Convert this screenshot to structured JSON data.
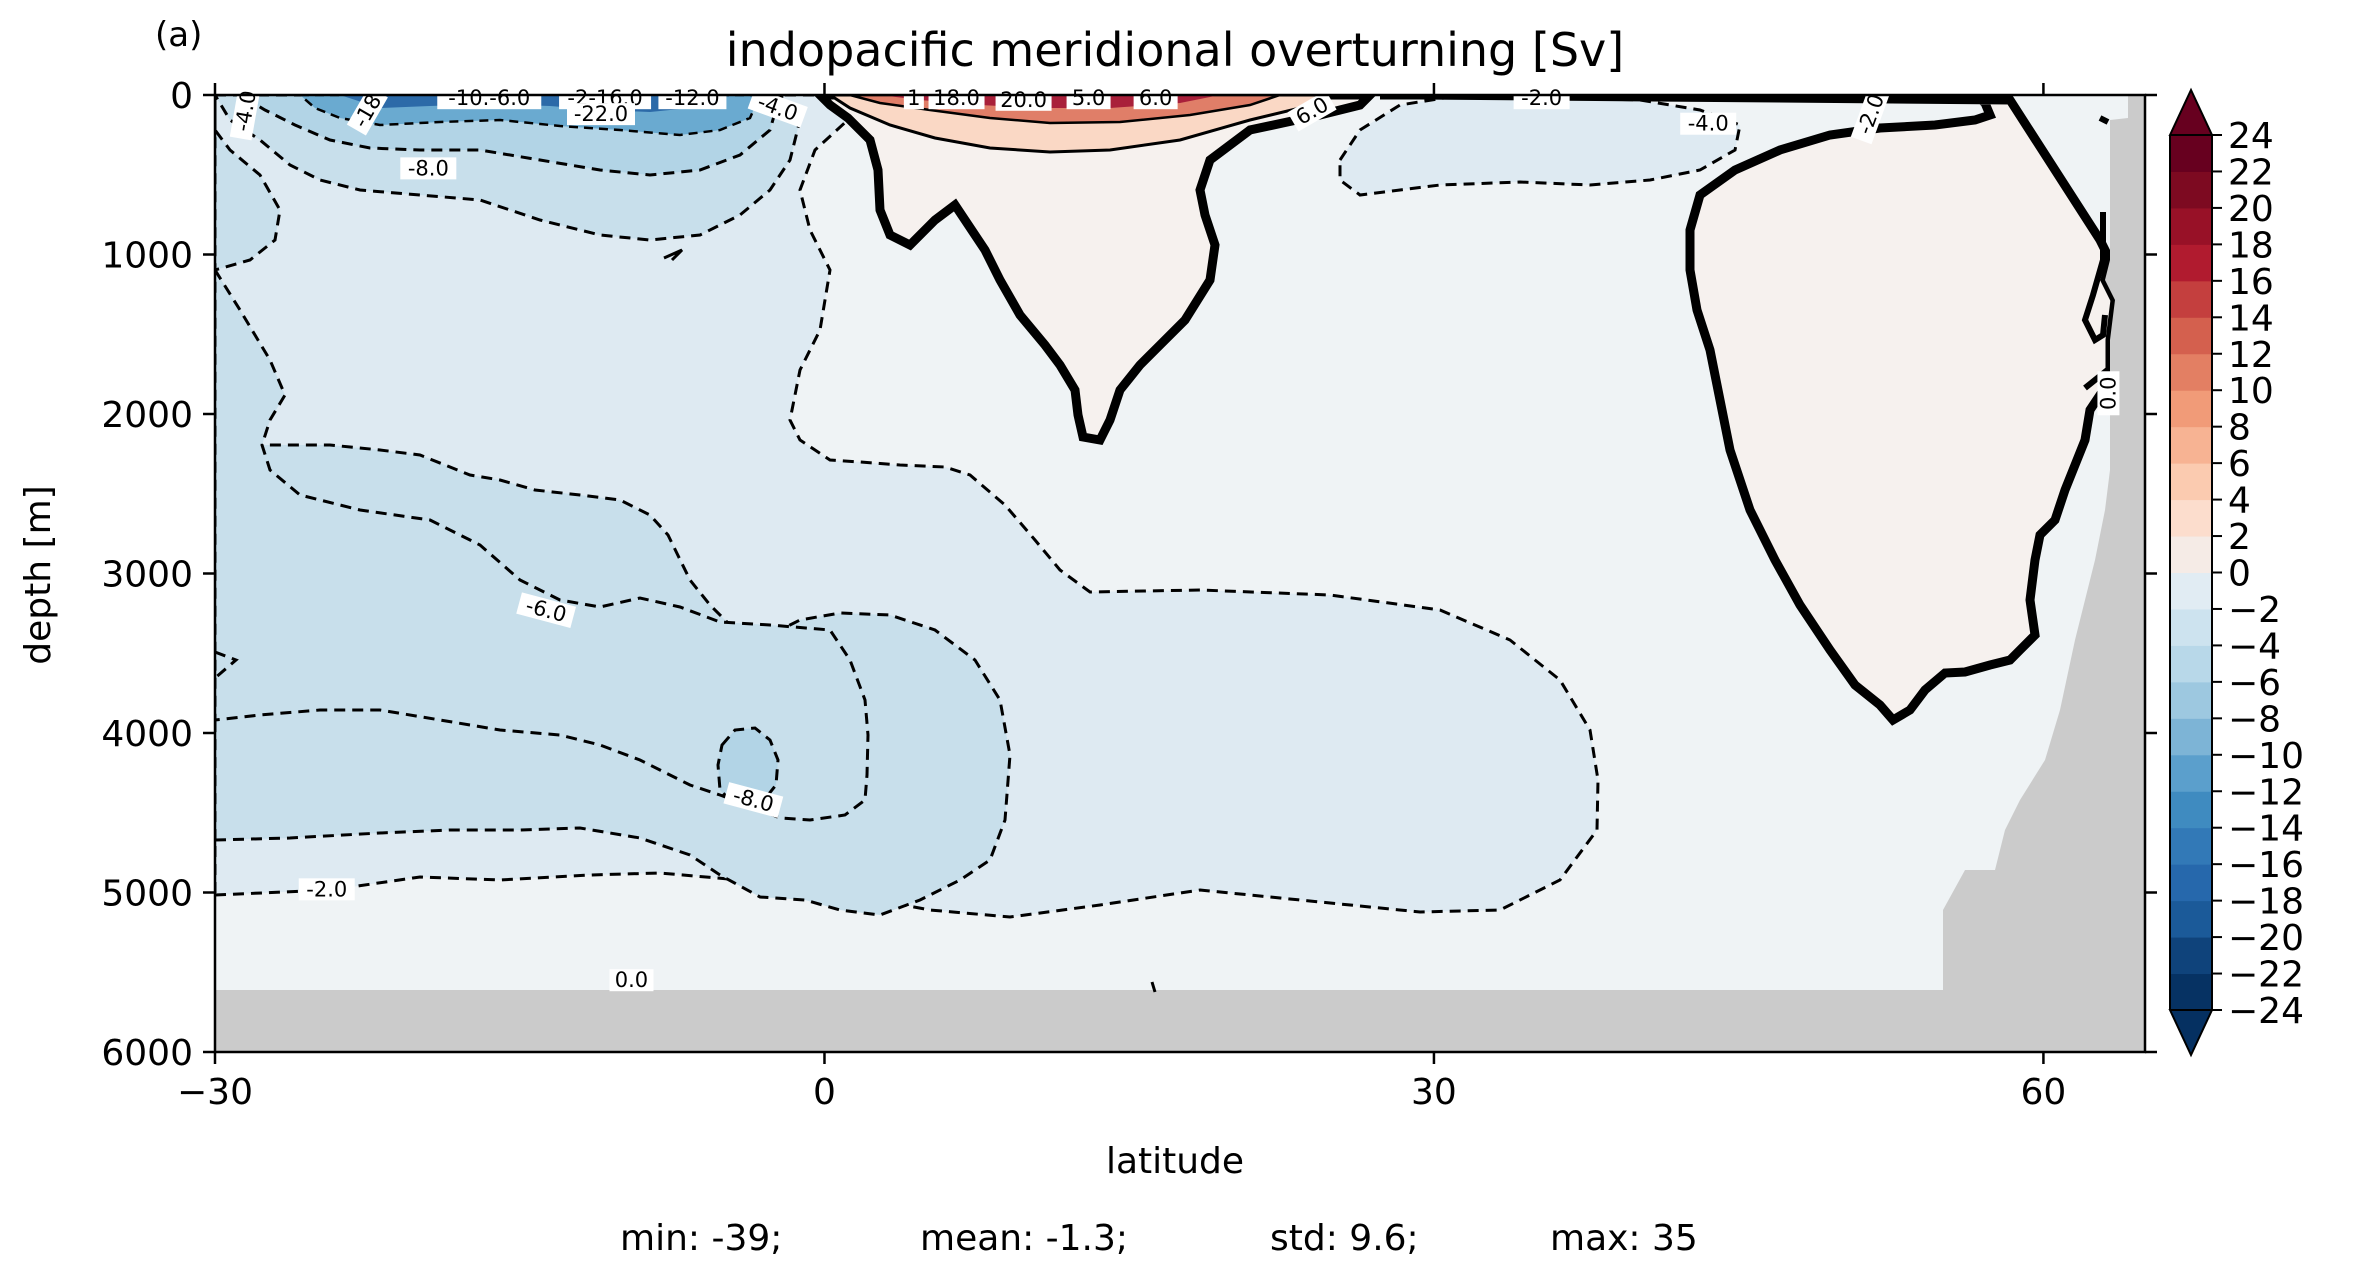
{
  "chart_data": {
    "type": "contour",
    "panel_label": "(a)",
    "title": "indopacific meridional overturning [Sv]",
    "xlabel": "latitude",
    "ylabel": "depth [m]",
    "xlim": [
      -30,
      65
    ],
    "ylim": [
      6000,
      0
    ],
    "xticks": [
      -30,
      0,
      30,
      60
    ],
    "xtick_labels": [
      "−30",
      "0",
      "30",
      "60"
    ],
    "yticks": [
      0,
      1000,
      2000,
      3000,
      4000,
      5000,
      6000
    ],
    "ytick_labels": [
      "0",
      "1000",
      "2000",
      "3000",
      "4000",
      "5000",
      "6000"
    ],
    "colorbar": {
      "cmap": "RdBu_r",
      "levels": [
        -24,
        -22,
        -20,
        -18,
        -16,
        -14,
        -12,
        -10,
        -8,
        -6,
        -4,
        -2,
        0,
        2,
        4,
        6,
        8,
        10,
        12,
        14,
        16,
        18,
        20,
        22,
        24
      ],
      "labels": [
        "24",
        "22",
        "20",
        "18",
        "16",
        "14",
        "12",
        "10",
        "8",
        "6",
        "4",
        "2",
        "0",
        "−2",
        "−4",
        "−6",
        "−8",
        "−10",
        "−12",
        "−14",
        "−16",
        "−18",
        "−20",
        "−22",
        "−24"
      ],
      "extend": "both"
    },
    "contour_labels": [
      {
        "text": "-4.0",
        "lat": -28.5,
        "depth": 100,
        "rot": -80
      },
      {
        "text": "-18",
        "lat": -22.5,
        "depth": 100,
        "rot": -60
      },
      {
        "text": "-10.-6.0",
        "lat": -16.5,
        "depth": 20,
        "rot": 0
      },
      {
        "text": "-2-16.0",
        "lat": -10.8,
        "depth": 20,
        "rot": 0
      },
      {
        "text": "-22.0",
        "lat": -11.0,
        "depth": 120,
        "rot": 0
      },
      {
        "text": "-12.0",
        "lat": -6.5,
        "depth": 20,
        "rot": 0
      },
      {
        "text": "-4.0",
        "lat": -2.3,
        "depth": 80,
        "rot": 20
      },
      {
        "text": "-8.0",
        "lat": -19.5,
        "depth": 460,
        "rot": 0
      },
      {
        "text": "1",
        "lat": 4.4,
        "depth": 20,
        "rot": 0
      },
      {
        "text": "18.0",
        "lat": 6.5,
        "depth": 20,
        "rot": 0
      },
      {
        "text": "20.0",
        "lat": 9.8,
        "depth": 30,
        "rot": 0
      },
      {
        "text": "5.0",
        "lat": 13.0,
        "depth": 20,
        "rot": 0
      },
      {
        "text": "6.0",
        "lat": 16.3,
        "depth": 20,
        "rot": 0
      },
      {
        "text": "6.0",
        "lat": 24.0,
        "depth": 100,
        "rot": -30
      },
      {
        "text": "-2.0",
        "lat": 35.3,
        "depth": 20,
        "rot": 0
      },
      {
        "text": "-4.0",
        "lat": 43.5,
        "depth": 180,
        "rot": 0
      },
      {
        "text": "-2.0",
        "lat": 51.5,
        "depth": 120,
        "rot": -70
      },
      {
        "text": "0.0",
        "lat": 63.2,
        "depth": 1870,
        "rot": -90
      },
      {
        "text": "-6.0",
        "lat": -13.7,
        "depth": 3230,
        "rot": 15
      },
      {
        "text": "-8.0",
        "lat": -3.5,
        "depth": 4420,
        "rot": 15
      },
      {
        "text": "-2.0",
        "lat": -24.5,
        "depth": 4980,
        "rot": 0
      },
      {
        "text": "0.0",
        "lat": -9.5,
        "depth": 5550,
        "rot": 0
      }
    ],
    "stats": {
      "min": "min: -39;",
      "mean": "mean: -1.3;",
      "std": "std: 9.6;",
      "max": "max: 35"
    }
  }
}
